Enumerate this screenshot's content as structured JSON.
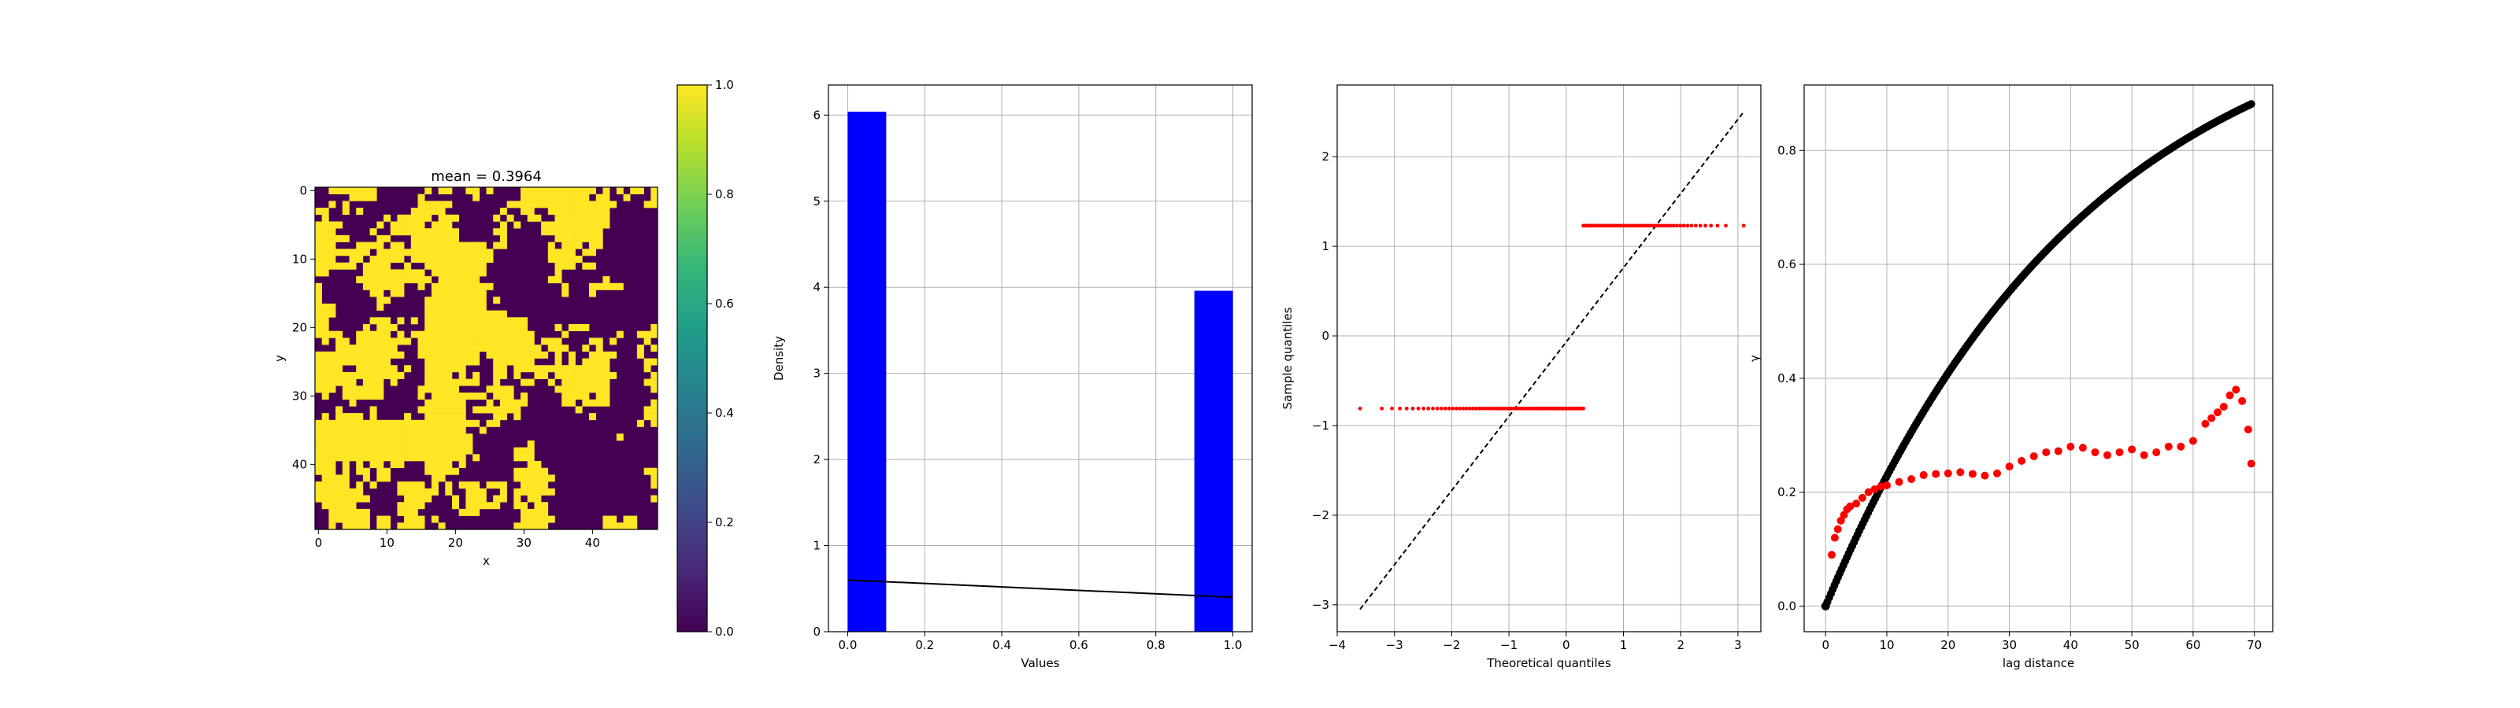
{
  "chart_data": [
    {
      "type": "heatmap",
      "title": "mean = 0.3964",
      "xlabel": "x",
      "ylabel": "y",
      "grid_size": [
        50,
        50
      ],
      "xticks": [
        0,
        10,
        20,
        30,
        40
      ],
      "yticks": [
        0,
        10,
        20,
        30,
        40
      ],
      "binary_values": [
        0,
        1
      ],
      "mean": 0.3964,
      "colormap": "viridis",
      "colors": {
        "low": "#440154",
        "high": "#fde725"
      },
      "colorbar": {
        "range": [
          0,
          1
        ],
        "ticks": [
          "0.0",
          "0.2",
          "0.4",
          "0.6",
          "0.8",
          "1.0"
        ]
      },
      "grid": false
    },
    {
      "type": "bar",
      "xlabel": "Values",
      "ylabel": "Density",
      "xlim": [
        -0.05,
        1.05
      ],
      "ylim": [
        0,
        6.35
      ],
      "xticks": [
        "0.0",
        "0.2",
        "0.4",
        "0.6",
        "0.8",
        "1.0"
      ],
      "yticks": [
        "0",
        "1",
        "2",
        "3",
        "4",
        "5",
        "6"
      ],
      "bars": [
        {
          "x0": 0.0,
          "x1": 0.1,
          "density": 6.04
        },
        {
          "x0": 0.9,
          "x1": 1.0,
          "density": 3.96
        }
      ],
      "fit_line": {
        "x": [
          0.0,
          1.0
        ],
        "y": [
          0.6,
          0.4
        ]
      },
      "bar_color": "#0000ff",
      "line_color": "#000000",
      "grid": true
    },
    {
      "type": "scatter",
      "xlabel": "Theoretical quantiles",
      "ylabel": "Sample quantiles",
      "xlim": [
        -4,
        3.4
      ],
      "ylim": [
        -3.3,
        2.8
      ],
      "xticks": [
        "−4",
        "−3",
        "−2",
        "−1",
        "0",
        "1",
        "2",
        "3"
      ],
      "yticks": [
        "−3",
        "−2",
        "−1",
        "0",
        "1",
        "2"
      ],
      "low_group": {
        "x_range": [
          -3.6,
          0.3
        ],
        "y": -0.81
      },
      "high_group": {
        "x_range": [
          0.3,
          3.1
        ],
        "y": 1.23
      },
      "reference_line": {
        "x": [
          -3.6,
          3.1
        ],
        "y": [
          -3.05,
          2.5
        ]
      },
      "point_color": "#ff0000",
      "line_color": "#000000",
      "grid": true
    },
    {
      "type": "scatter",
      "xlabel": "lag distance",
      "ylabel": "γ",
      "xlim": [
        -3.5,
        73
      ],
      "ylim": [
        -0.045,
        0.915
      ],
      "xticks": [
        "0",
        "10",
        "20",
        "30",
        "40",
        "50",
        "60",
        "70"
      ],
      "yticks": [
        "0.0",
        "0.2",
        "0.4",
        "0.6",
        "0.8"
      ],
      "series": [
        {
          "color": "#000000",
          "model": "exponential",
          "sill": 1.1,
          "range": 43,
          "x_max": 69.5
        },
        {
          "color": "#ff0000",
          "x": [
            0,
            1,
            1.5,
            2,
            2.5,
            3,
            3.5,
            4,
            5,
            6,
            7,
            8,
            9,
            10,
            12,
            14,
            16,
            18,
            20,
            22,
            24,
            26,
            28,
            30,
            32,
            34,
            36,
            38,
            40,
            42,
            44,
            46,
            48,
            50,
            52,
            54,
            56,
            58,
            60,
            62,
            63,
            64,
            65,
            66,
            67,
            68,
            69
          ],
          "y": [
            0.0,
            0.09,
            0.12,
            0.135,
            0.15,
            0.16,
            0.17,
            0.175,
            0.18,
            0.19,
            0.2,
            0.205,
            0.21,
            0.212,
            0.218,
            0.223,
            0.23,
            0.232,
            0.233,
            0.235,
            0.232,
            0.229,
            0.233,
            0.245,
            0.255,
            0.263,
            0.27,
            0.272,
            0.28,
            0.278,
            0.27,
            0.265,
            0.27,
            0.275,
            0.265,
            0.27,
            0.28,
            0.28,
            0.29,
            0.32,
            0.33,
            0.34,
            0.35,
            0.37,
            0.38,
            0.36,
            0.31
          ]
        }
      ],
      "extra_point": {
        "x": 69.5,
        "y": 0.25
      },
      "grid": true
    }
  ]
}
